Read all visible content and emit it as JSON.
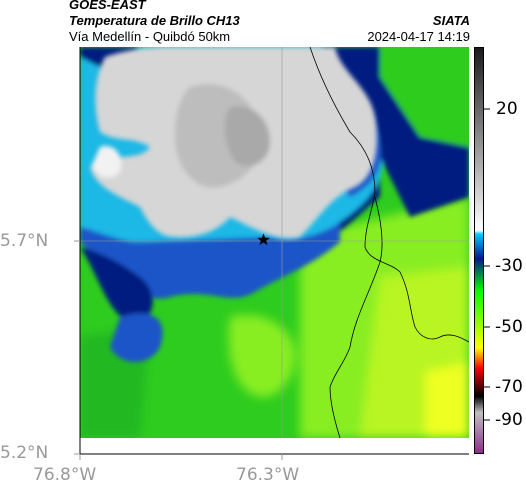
{
  "header": {
    "satellite": "GOES-EAST",
    "product": "Temperatura de Brillo CH13",
    "region": "Vía Medellín - Quibdó 50km",
    "agency": "SIATA",
    "datetime": "2024-04-17 14:19"
  },
  "axes": {
    "lat_ticks": [
      "5.7°N",
      "5.2°N"
    ],
    "lon_ticks": [
      "76.8°W",
      "76.3°W"
    ]
  },
  "colorbar": {
    "ticks": [
      "20",
      "-30",
      "-50",
      "-70",
      "-90"
    ],
    "colors": [
      "#1a1a1a",
      "#ffffff",
      "#00c8ff",
      "#001a8c",
      "#00ff00",
      "#ffff00",
      "#ff0000",
      "#000000",
      "#bfbfbf",
      "#8c2e8c"
    ]
  },
  "map": {
    "marker": "star-marker",
    "colors": {
      "cold_cloud": "#d6d6d6",
      "cyan": "#1ab8e6",
      "navy": "#061a80",
      "blue": "#1f55c8",
      "green": "#2ecc1f",
      "lime": "#88ee22",
      "yellow": "#eeff22",
      "border": "#000000"
    }
  }
}
